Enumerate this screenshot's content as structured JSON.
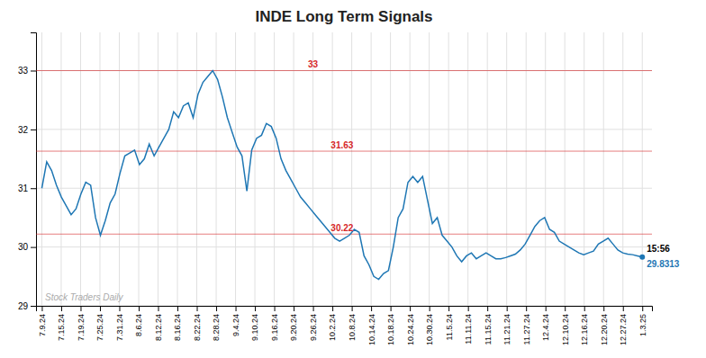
{
  "chart_data": {
    "type": "line",
    "title": "INDE Long Term Signals",
    "xlim": [
      -0.3,
      31.5
    ],
    "xticks": [
      {
        "value": 0,
        "label": "7.9.24"
      },
      {
        "value": 1,
        "label": "7.15.24"
      },
      {
        "value": 2,
        "label": "7.19.24"
      },
      {
        "value": 3,
        "label": "7.25.24"
      },
      {
        "value": 4,
        "label": "7.31.24"
      },
      {
        "value": 5,
        "label": "8.6.24"
      },
      {
        "value": 6,
        "label": "8.12.24"
      },
      {
        "value": 7,
        "label": "8.16.24"
      },
      {
        "value": 8,
        "label": "8.22.24"
      },
      {
        "value": 9,
        "label": "8.28.24"
      },
      {
        "value": 10,
        "label": "9.4.24"
      },
      {
        "value": 11,
        "label": "9.10.24"
      },
      {
        "value": 12,
        "label": "9.16.24"
      },
      {
        "value": 13,
        "label": "9.20.24"
      },
      {
        "value": 14,
        "label": "9.26.24"
      },
      {
        "value": 15,
        "label": "10.2.24"
      },
      {
        "value": 16,
        "label": "10.8.24"
      },
      {
        "value": 17,
        "label": "10.14.24"
      },
      {
        "value": 18,
        "label": "10.18.24"
      },
      {
        "value": 19,
        "label": "10.24.24"
      },
      {
        "value": 20,
        "label": "10.30.24"
      },
      {
        "value": 21,
        "label": "11.5.24"
      },
      {
        "value": 22,
        "label": "11.11.24"
      },
      {
        "value": 23,
        "label": "11.15.24"
      },
      {
        "value": 24,
        "label": "11.21.24"
      },
      {
        "value": 25,
        "label": "11.27.24"
      },
      {
        "value": 26,
        "label": "12.4.24"
      },
      {
        "value": 27,
        "label": "12.10.24"
      },
      {
        "value": 28,
        "label": "12.16.24"
      },
      {
        "value": 29,
        "label": "12.20.24"
      },
      {
        "value": 30,
        "label": "12.27.24"
      },
      {
        "value": 31,
        "label": "1.3.25"
      }
    ],
    "ylim": [
      29.0,
      33.65
    ],
    "yticks": [
      29,
      30,
      31,
      32,
      33
    ],
    "grid": true,
    "x": [
      0,
      0.252,
      0.5041,
      0.7561,
      1.0081,
      1.2602,
      1.5122,
      1.7642,
      2.0163,
      2.2683,
      2.5203,
      2.7724,
      3.0244,
      3.2764,
      3.5285,
      3.7805,
      4.0325,
      4.2846,
      4.5366,
      4.7886,
      5.0407,
      5.2927,
      5.5447,
      5.7967,
      6.0488,
      6.3008,
      6.5528,
      6.8049,
      7.0569,
      7.3089,
      7.561,
      7.813,
      8.065,
      8.3171,
      8.5691,
      8.8211,
      9.0732,
      9.3252,
      9.5772,
      9.8293,
      10.0813,
      10.3333,
      10.5854,
      10.8374,
      11.0894,
      11.3415,
      11.5935,
      11.8455,
      12.0976,
      12.3496,
      12.6016,
      12.8537,
      13.1057,
      13.3577,
      13.6098,
      13.8618,
      14.1138,
      14.3659,
      14.6179,
      14.8699,
      15.122,
      15.374,
      15.626,
      15.878,
      16.1301,
      16.3821,
      16.6341,
      16.8862,
      17.1382,
      17.3902,
      17.6423,
      17.8943,
      18.1463,
      18.3984,
      18.6504,
      18.9024,
      19.1545,
      19.4065,
      19.6585,
      19.9106,
      20.1626,
      20.4146,
      20.6667,
      20.9187,
      21.1707,
      21.4228,
      21.6748,
      21.9268,
      22.1789,
      22.4309,
      22.6829,
      22.935,
      23.187,
      23.439,
      23.6911,
      23.9431,
      24.1951,
      24.4472,
      24.6992,
      24.9512,
      25.2033,
      25.4553,
      25.7073,
      25.9593,
      26.2114,
      26.4634,
      26.7154,
      26.9675,
      27.2195,
      27.4715,
      27.7236,
      27.9756,
      28.2276,
      28.4797,
      28.7317,
      28.9837,
      29.2358,
      29.4878,
      29.7398,
      29.9919,
      30.2439,
      30.4959,
      30.748,
      31
    ],
    "values": [
      31.0,
      31.45,
      31.3,
      31.05,
      30.85,
      30.7,
      30.55,
      30.65,
      30.9,
      31.1,
      31.05,
      30.5,
      30.2,
      30.45,
      30.75,
      30.9,
      31.25,
      31.55,
      31.6,
      31.65,
      31.4,
      31.5,
      31.75,
      31.55,
      31.7,
      31.85,
      32.0,
      32.3,
      32.2,
      32.4,
      32.45,
      32.2,
      32.6,
      32.8,
      32.9,
      33.0,
      32.85,
      32.55,
      32.2,
      31.95,
      31.7,
      31.55,
      30.95,
      31.65,
      31.85,
      31.9,
      32.1,
      32.05,
      31.85,
      31.5,
      31.3,
      31.15,
      31.0,
      30.85,
      30.75,
      30.65,
      30.55,
      30.45,
      30.35,
      30.25,
      30.15,
      30.1,
      30.15,
      30.2,
      30.3,
      30.25,
      29.85,
      29.7,
      29.5,
      29.45,
      29.55,
      29.6,
      30.0,
      30.5,
      30.65,
      31.1,
      31.2,
      31.1,
      31.2,
      30.8,
      30.4,
      30.5,
      30.2,
      30.1,
      30.0,
      29.85,
      29.75,
      29.85,
      29.9,
      29.8,
      29.85,
      29.9,
      29.85,
      29.8,
      29.8,
      29.82,
      29.85,
      29.88,
      29.95,
      30.05,
      30.2,
      30.35,
      30.45,
      30.5,
      30.3,
      30.25,
      30.1,
      30.05,
      30.0,
      29.95,
      29.9,
      29.87,
      29.9,
      29.93,
      30.05,
      30.1,
      30.15,
      30.05,
      29.95,
      29.9,
      29.88,
      29.87,
      29.85,
      29.83
    ],
    "hlines": [
      {
        "value": 33.0,
        "color": "#d62728"
      },
      {
        "value": 31.63,
        "color": "#d62728"
      },
      {
        "value": 30.22,
        "color": "#d62728"
      }
    ],
    "annotations": [
      "Stock Traders Daily",
      "15:56",
      "29.8313"
    ]
  }
}
